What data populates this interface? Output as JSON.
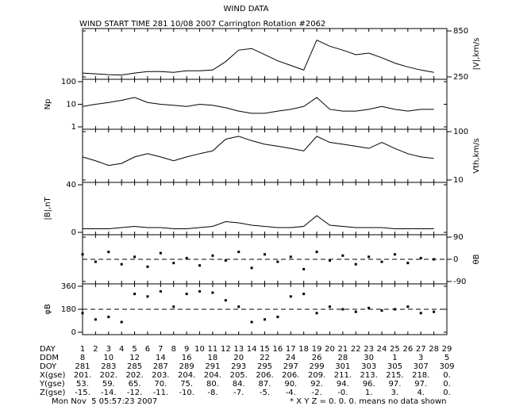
{
  "title": "WIND DATA",
  "subtitle": "WIND START TIME 281 10/08 2007 Carrington Rotation #2062",
  "chart_data": [
    {
      "type": "line",
      "ylabel": "|V|,km/s",
      "axis_side": "right",
      "color": "#000000",
      "log": false,
      "xlim": [
        1,
        29
      ],
      "ylim": [
        250,
        850
      ],
      "yticks": [
        250,
        850
      ],
      "x": [
        1,
        2,
        3,
        4,
        5,
        6,
        7,
        8,
        9,
        10,
        11,
        12,
        13,
        14,
        15,
        16,
        17,
        18,
        19,
        20,
        21,
        22,
        23,
        24,
        25,
        26,
        27,
        28
      ],
      "values": [
        300,
        290,
        280,
        275,
        300,
        320,
        320,
        310,
        330,
        330,
        340,
        450,
        600,
        620,
        540,
        460,
        400,
        340,
        730,
        650,
        600,
        540,
        560,
        500,
        430,
        380,
        340,
        310
      ]
    },
    {
      "type": "line",
      "ylabel": "Np",
      "axis_side": "left",
      "color": "#000000",
      "log": true,
      "xlim": [
        1,
        29
      ],
      "ylim": [
        1,
        100
      ],
      "yticks": [
        1,
        10,
        100
      ],
      "x": [
        1,
        2,
        3,
        4,
        5,
        6,
        7,
        8,
        9,
        10,
        11,
        12,
        13,
        14,
        15,
        16,
        17,
        18,
        19,
        20,
        21,
        22,
        23,
        24,
        25,
        26,
        27,
        28
      ],
      "values": [
        8,
        10,
        12,
        15,
        20,
        12,
        10,
        9,
        8,
        10,
        9,
        7,
        5,
        4,
        4,
        5,
        6,
        8,
        20,
        6,
        5,
        5,
        6,
        8,
        6,
        5,
        6,
        6
      ]
    },
    {
      "type": "line",
      "ylabel": "Vth,km/s",
      "axis_side": "right",
      "color": "#000000",
      "log": true,
      "xlim": [
        1,
        29
      ],
      "ylim": [
        10,
        100
      ],
      "yticks": [
        10,
        100
      ],
      "x": [
        1,
        2,
        3,
        4,
        5,
        6,
        7,
        8,
        9,
        10,
        11,
        12,
        13,
        14,
        15,
        16,
        17,
        18,
        19,
        20,
        21,
        22,
        23,
        24,
        25,
        26,
        27,
        28
      ],
      "values": [
        30,
        25,
        20,
        22,
        30,
        35,
        30,
        25,
        30,
        35,
        40,
        70,
        80,
        65,
        55,
        50,
        45,
        40,
        80,
        60,
        55,
        50,
        45,
        60,
        45,
        35,
        30,
        28
      ]
    },
    {
      "type": "line",
      "ylabel": "|B|,nT",
      "axis_side": "left",
      "color": "#000000",
      "log": false,
      "xlim": [
        1,
        29
      ],
      "ylim": [
        0,
        40
      ],
      "yticks": [
        0,
        40
      ],
      "x": [
        1,
        2,
        3,
        4,
        5,
        6,
        7,
        8,
        9,
        10,
        11,
        12,
        13,
        14,
        15,
        16,
        17,
        18,
        19,
        20,
        21,
        22,
        23,
        24,
        25,
        26,
        27,
        28
      ],
      "values": [
        3,
        3,
        3,
        4,
        5,
        4,
        4,
        3,
        3,
        4,
        5,
        9,
        8,
        6,
        5,
        4,
        4,
        5,
        14,
        6,
        5,
        4,
        4,
        4,
        3,
        3,
        3,
        3
      ]
    },
    {
      "type": "scatter",
      "ylabel": "θB",
      "axis_side": "right",
      "color": "#000000",
      "log": false,
      "hline": 0,
      "xlim": [
        1,
        29
      ],
      "ylim": [
        -90,
        90
      ],
      "yticks": [
        -90,
        0,
        90
      ],
      "x": [
        1,
        2,
        3,
        4,
        5,
        6,
        7,
        8,
        9,
        10,
        11,
        12,
        13,
        14,
        15,
        16,
        17,
        18,
        19,
        20,
        21,
        22,
        23,
        24,
        25,
        26,
        27,
        28
      ],
      "values": [
        20,
        -10,
        30,
        -20,
        10,
        -30,
        25,
        -15,
        5,
        -25,
        15,
        -5,
        30,
        -35,
        20,
        -10,
        10,
        -40,
        30,
        -5,
        15,
        -20,
        10,
        -10,
        20,
        -15,
        5,
        0
      ]
    },
    {
      "type": "scatter",
      "ylabel": "φB",
      "axis_side": "left",
      "color": "#000000",
      "log": false,
      "hline": 180,
      "xlim": [
        1,
        29
      ],
      "ylim": [
        0,
        360
      ],
      "yticks": [
        0,
        180,
        360
      ],
      "x": [
        1,
        2,
        3,
        4,
        5,
        6,
        7,
        8,
        9,
        10,
        11,
        12,
        13,
        14,
        15,
        16,
        17,
        18,
        19,
        20,
        21,
        22,
        23,
        24,
        25,
        26,
        27,
        28
      ],
      "values": [
        150,
        100,
        120,
        80,
        300,
        280,
        320,
        200,
        300,
        320,
        310,
        250,
        200,
        80,
        100,
        120,
        280,
        300,
        150,
        200,
        180,
        160,
        190,
        170,
        180,
        200,
        150,
        160
      ]
    }
  ],
  "table": {
    "rows": [
      {
        "label": "DAY",
        "values": [
          1,
          2,
          3,
          4,
          5,
          6,
          7,
          8,
          9,
          10,
          11,
          12,
          13,
          14,
          15,
          16,
          17,
          18,
          19,
          20,
          21,
          22,
          23,
          24,
          25,
          26,
          27,
          28,
          29
        ]
      },
      {
        "label": "DDM",
        "values": [
          8,
          10,
          12,
          14,
          16,
          18,
          20,
          22,
          24,
          26,
          28,
          30,
          1,
          3,
          5
        ]
      },
      {
        "label": "DOY",
        "values": [
          281,
          283,
          285,
          287,
          289,
          291,
          293,
          295,
          297,
          299,
          301,
          303,
          305,
          307,
          309
        ]
      },
      {
        "label": "X(gse)",
        "values": [
          "201.",
          "202.",
          "202.",
          "203.",
          "204.",
          "204.",
          "205.",
          "206.",
          "206.",
          "209.",
          "211.",
          "213.",
          "215.",
          "218.",
          "0."
        ]
      },
      {
        "label": "Y(gse)",
        "values": [
          "53.",
          "59.",
          "65.",
          "70.",
          "75.",
          "80.",
          "84.",
          "87.",
          "90.",
          "92.",
          "94.",
          "96.",
          "97.",
          "97.",
          "0."
        ]
      },
      {
        "label": "Z(gse)",
        "values": [
          "-15.",
          "-14.",
          "-12.",
          "-11.",
          "-10.",
          "-8.",
          "-7.",
          "-5.",
          "-4.",
          "-2.",
          "-0.",
          "1.",
          "3.",
          "4.",
          "0."
        ]
      }
    ]
  },
  "footer": {
    "timestamp": "Mon Nov  5 05:57:23 2007",
    "note": "* X Y Z = 0. 0. 0. means no data shown"
  }
}
